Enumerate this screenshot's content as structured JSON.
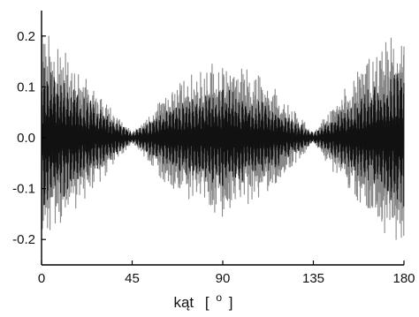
{
  "chart_data": {
    "type": "line",
    "title": "",
    "xlabel": "kąt [ ° ]",
    "xlabel_parts": {
      "word": "kąt",
      "open": "[",
      "sup": "o",
      "close": "]"
    },
    "ylabel": "",
    "xlim": [
      0,
      180
    ],
    "ylim": [
      -0.25,
      0.25
    ],
    "x_ticks": [
      0,
      45,
      90,
      135,
      180
    ],
    "x_tick_labels": [
      "0",
      "45",
      "90",
      "135",
      "180"
    ],
    "y_ticks": [
      0.2,
      0.1,
      0.0,
      -0.1,
      -0.2
    ],
    "y_tick_labels": [
      "0.2",
      "0.1",
      "0.0",
      "-0.1",
      "-0.2"
    ],
    "grid": false,
    "legend": "none",
    "series": [
      {
        "color": "#888888",
        "description_envelope": "amplitude ~ 0.23*|cos(2*angle)|, densely oscillating signal",
        "envelope_points": [
          {
            "x": 0,
            "y": 0.22
          },
          {
            "x": 22.5,
            "y": 0.12
          },
          {
            "x": 45,
            "y": 0.01
          },
          {
            "x": 67.5,
            "y": 0.12
          },
          {
            "x": 90,
            "y": 0.16
          },
          {
            "x": 112.5,
            "y": 0.12
          },
          {
            "x": 135,
            "y": 0.01
          },
          {
            "x": 157.5,
            "y": 0.14
          },
          {
            "x": 180,
            "y": 0.23
          }
        ]
      },
      {
        "color": "#111111",
        "description_envelope": "amplitude ~ 0.13*|cos(2*angle)|, densely oscillating signal",
        "envelope_points": [
          {
            "x": 0,
            "y": 0.15
          },
          {
            "x": 22.5,
            "y": 0.08
          },
          {
            "x": 45,
            "y": 0.01
          },
          {
            "x": 67.5,
            "y": 0.07
          },
          {
            "x": 90,
            "y": 0.1
          },
          {
            "x": 112.5,
            "y": 0.07
          },
          {
            "x": 135,
            "y": 0.01
          },
          {
            "x": 157.5,
            "y": 0.08
          },
          {
            "x": 180,
            "y": 0.15
          }
        ]
      }
    ]
  }
}
